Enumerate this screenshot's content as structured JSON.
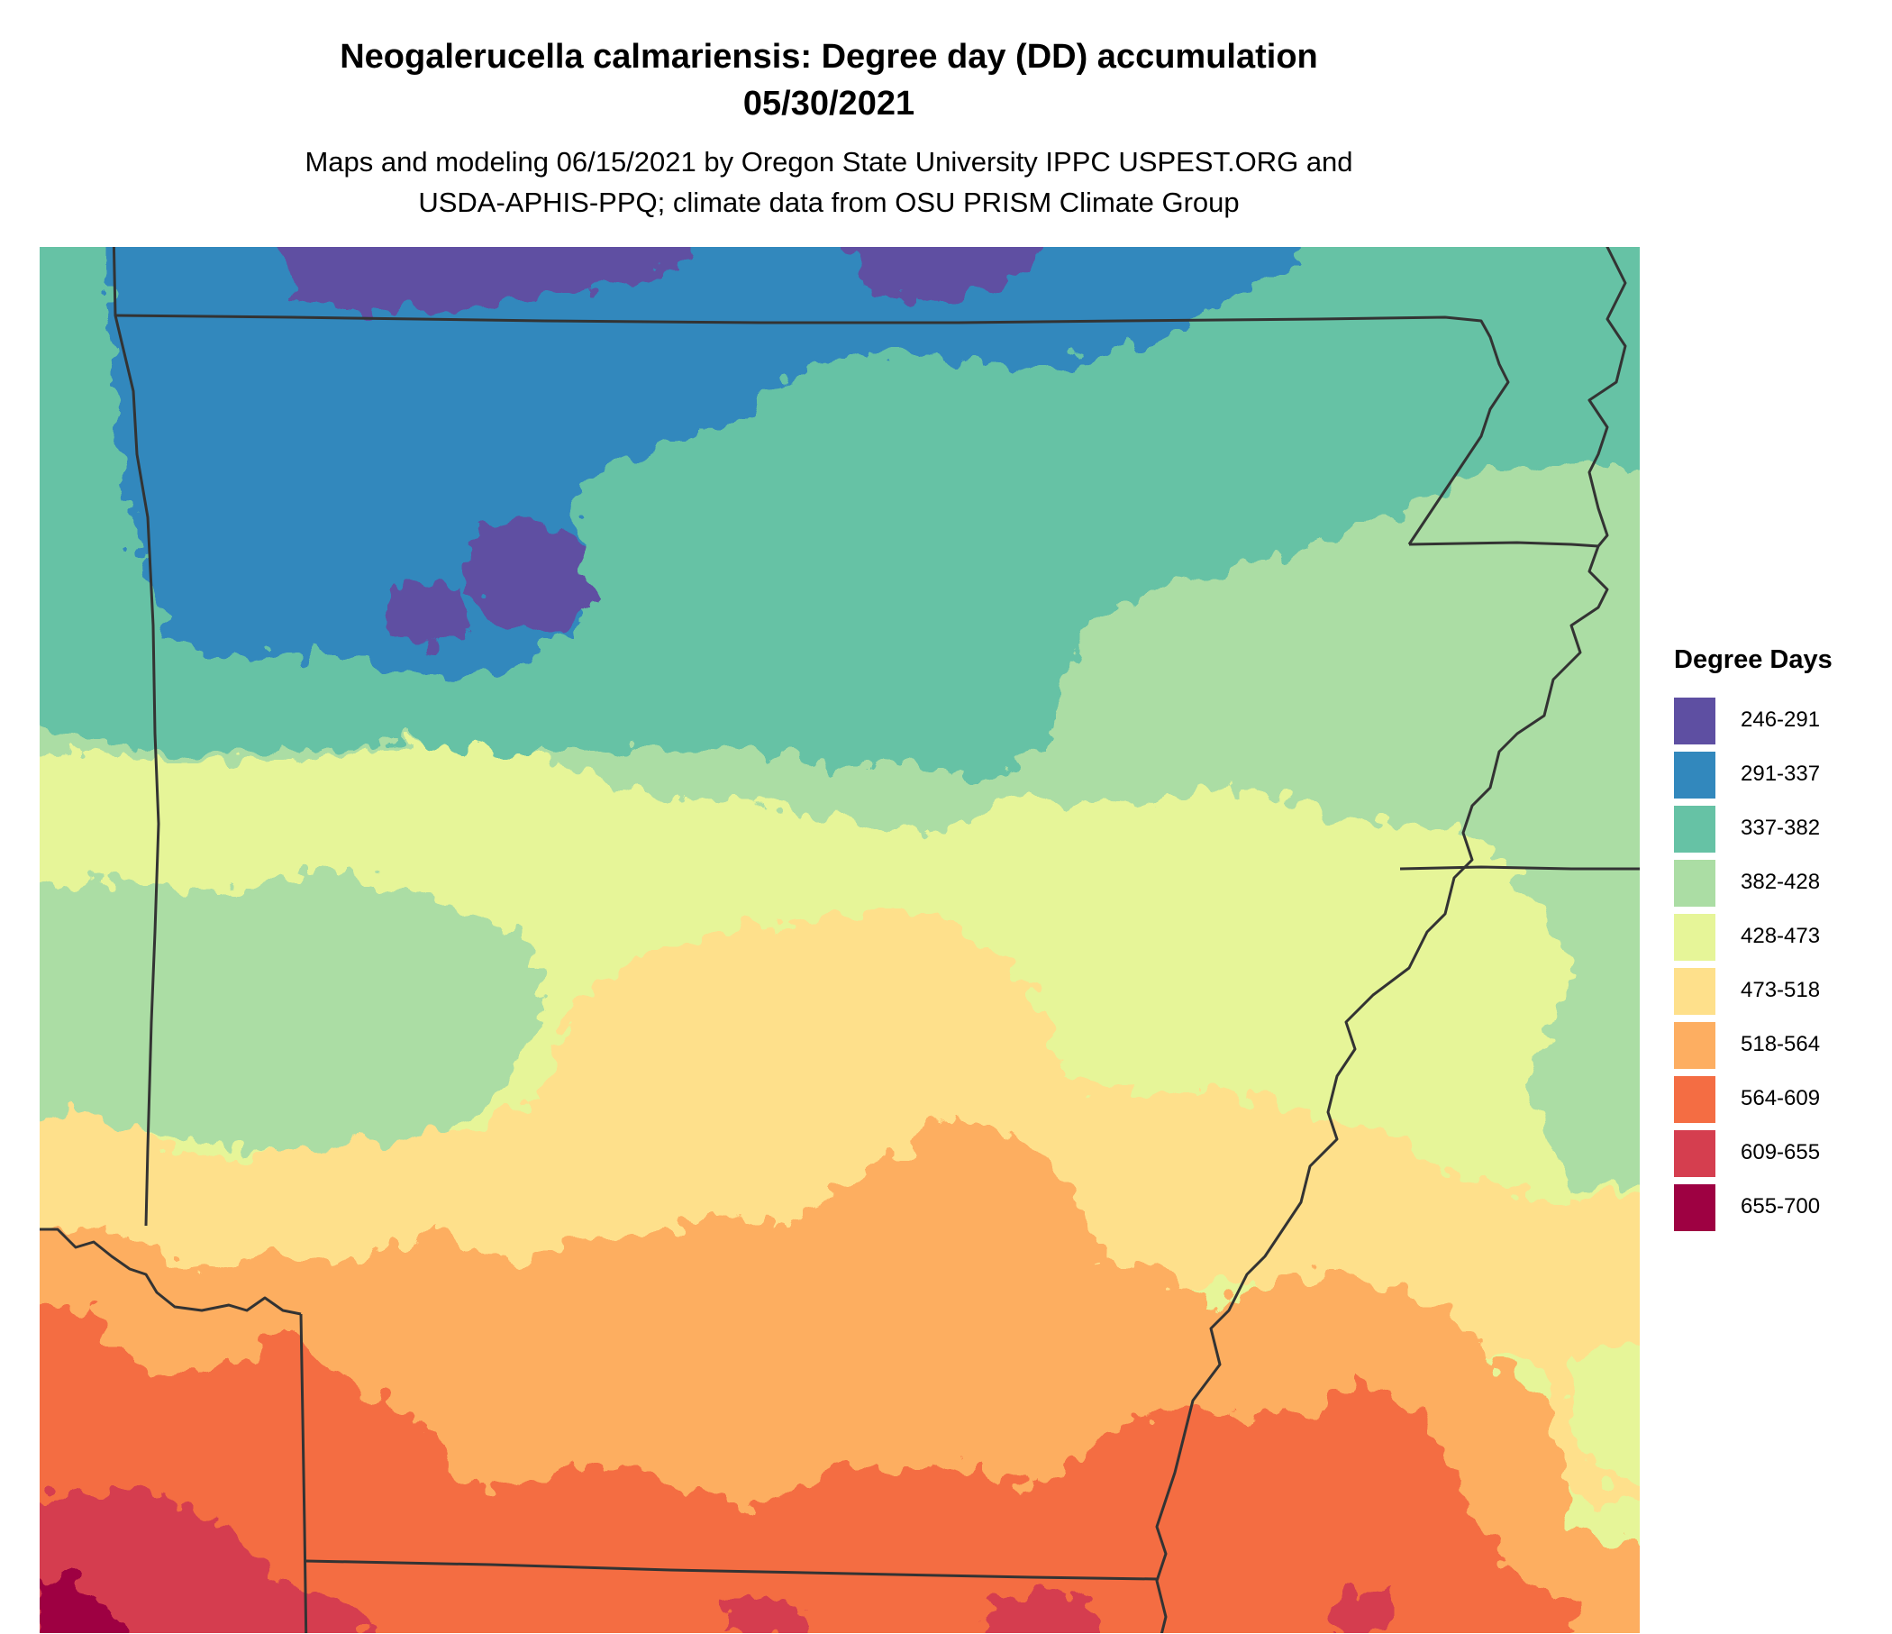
{
  "title": {
    "line1": "Neogalerucella calmariensis: Degree day (DD) accumulation",
    "line2": "05/30/2021"
  },
  "subtitle": {
    "line1": "Maps and modeling 06/15/2021 by Oregon State University IPPC USPEST.ORG and",
    "line2": "USDA-APHIS-PPQ; climate data from OSU PRISM Climate Group"
  },
  "legend": {
    "title": "Degree Days",
    "items": [
      {
        "label": "246-291",
        "color": "#5e4fa2"
      },
      {
        "label": "291-337",
        "color": "#3288bd"
      },
      {
        "label": "337-382",
        "color": "#66c2a5"
      },
      {
        "label": "382-428",
        "color": "#abdda4"
      },
      {
        "label": "428-473",
        "color": "#e6f598"
      },
      {
        "label": "473-518",
        "color": "#fee08b"
      },
      {
        "label": "518-564",
        "color": "#fdae61"
      },
      {
        "label": "564-609",
        "color": "#f46d43"
      },
      {
        "label": "609-655",
        "color": "#d53e4f"
      },
      {
        "label": "655-700",
        "color": "#9e0142"
      }
    ]
  },
  "map": {
    "boundary_color": "#333333"
  }
}
